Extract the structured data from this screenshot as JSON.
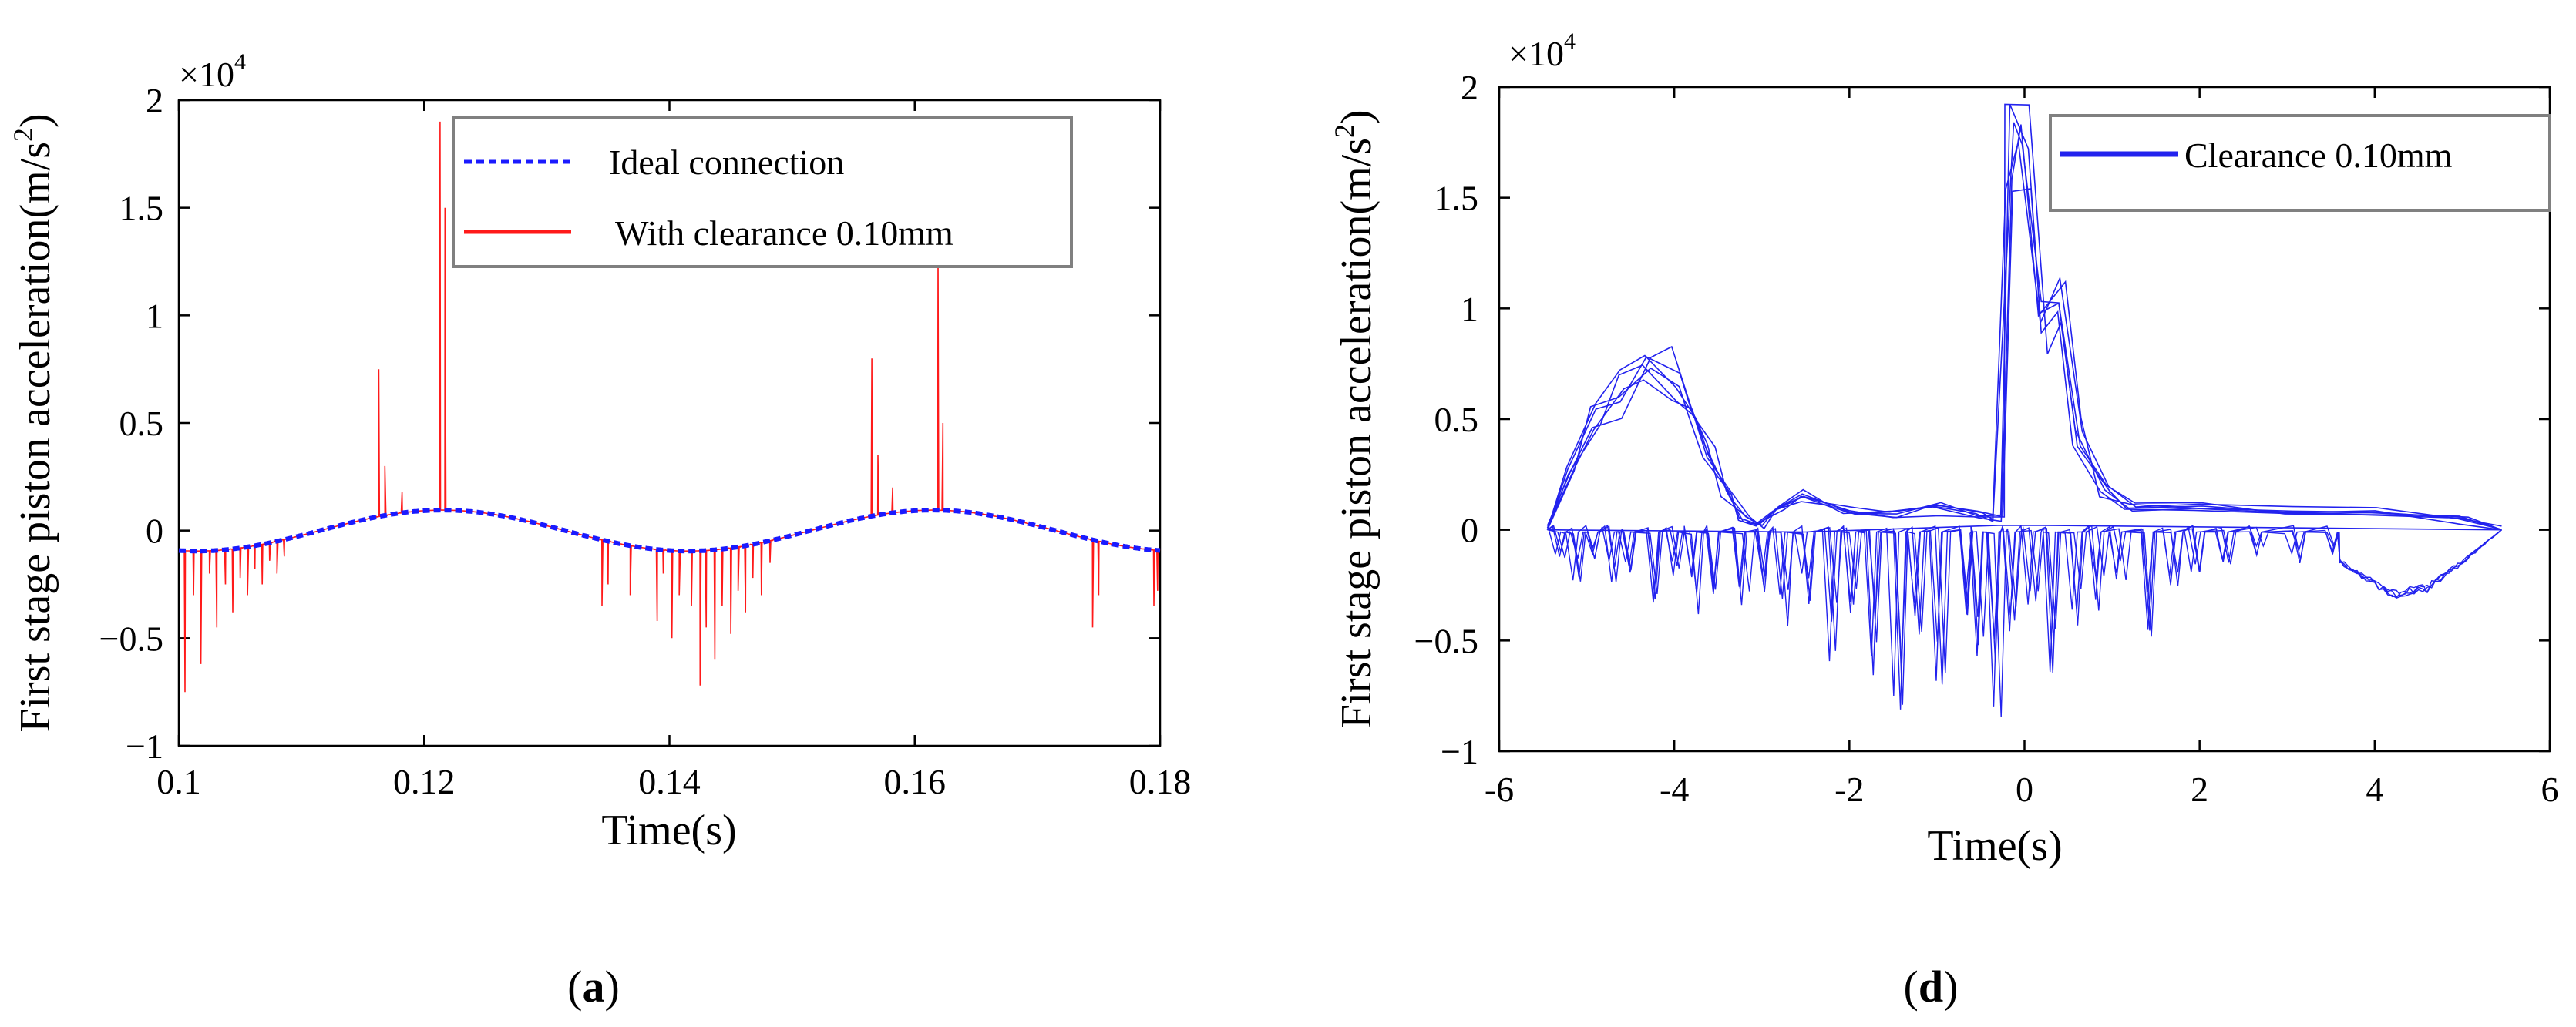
{
  "figure": {
    "panels": [
      "a",
      "d"
    ]
  },
  "chart_data": [
    {
      "id": "a",
      "type": "line",
      "panel_label": "a",
      "title": "",
      "xlabel": "Time(s)",
      "ylabel": "First stage piston acceleration(m/s²)",
      "ylabel_main": "First stage piston acceleration(m/s",
      "ylabel_sup": "2",
      "ylabel_close": ")",
      "y_multiplier": "×10",
      "y_multiplier_exp": "4",
      "xlim": [
        0.1,
        0.18
      ],
      "ylim": [
        -1,
        2
      ],
      "xticks": [
        0.1,
        0.12,
        0.14,
        0.16,
        0.18
      ],
      "xtick_labels": [
        "0.1",
        "0.12",
        "0.14",
        "0.16",
        "0.18"
      ],
      "yticks": [
        -1,
        -0.5,
        0,
        0.5,
        1,
        1.5,
        2
      ],
      "ytick_labels": [
        "−1",
        "−0.5",
        "0",
        "0.5",
        "1",
        "1.5",
        "2"
      ],
      "legend_position": "top-right",
      "series": [
        {
          "name": "Ideal connection",
          "style": "dashed",
          "color": "#1a1aff",
          "function": "sinusoid",
          "amplitude": 0.095,
          "period": 0.04,
          "peak_at": 0.1215
        },
        {
          "name": "With clearance 0.10mm",
          "style": "solid",
          "color": "#ff1a1a",
          "spikes": [
            [
              0.1005,
              -0.75
            ],
            [
              0.1012,
              -0.3
            ],
            [
              0.1018,
              -0.62
            ],
            [
              0.1025,
              -0.2
            ],
            [
              0.1031,
              -0.45
            ],
            [
              0.1038,
              -0.25
            ],
            [
              0.1044,
              -0.38
            ],
            [
              0.105,
              -0.22
            ],
            [
              0.1056,
              -0.3
            ],
            [
              0.1062,
              -0.18
            ],
            [
              0.1068,
              -0.25
            ],
            [
              0.1074,
              -0.14
            ],
            [
              0.108,
              -0.2
            ],
            [
              0.1086,
              -0.12
            ],
            [
              0.1163,
              0.75
            ],
            [
              0.1168,
              0.3
            ],
            [
              0.1182,
              0.18
            ],
            [
              0.1213,
              1.9
            ],
            [
              0.1217,
              1.5
            ],
            [
              0.1345,
              -0.35
            ],
            [
              0.135,
              -0.25
            ],
            [
              0.1368,
              -0.3
            ],
            [
              0.139,
              -0.42
            ],
            [
              0.1395,
              -0.2
            ],
            [
              0.1402,
              -0.5
            ],
            [
              0.1408,
              -0.3
            ],
            [
              0.1418,
              -0.35
            ],
            [
              0.1425,
              -0.72
            ],
            [
              0.143,
              -0.45
            ],
            [
              0.1437,
              -0.6
            ],
            [
              0.1443,
              -0.35
            ],
            [
              0.145,
              -0.48
            ],
            [
              0.1456,
              -0.28
            ],
            [
              0.1462,
              -0.38
            ],
            [
              0.1468,
              -0.22
            ],
            [
              0.1475,
              -0.3
            ],
            [
              0.1482,
              -0.15
            ],
            [
              0.1565,
              0.8
            ],
            [
              0.157,
              0.35
            ],
            [
              0.1582,
              0.2
            ],
            [
              0.1619,
              1.3
            ],
            [
              0.1623,
              0.5
            ],
            [
              0.1745,
              -0.45
            ],
            [
              0.175,
              -0.3
            ],
            [
              0.1795,
              -0.35
            ],
            [
              0.1798,
              -0.28
            ]
          ]
        }
      ]
    },
    {
      "id": "d",
      "type": "line",
      "panel_label": "d",
      "title": "",
      "xlabel": "Time(s)",
      "ylabel": "First stage piston acceleration(m/s²)",
      "ylabel_main": "First stage piston acceleration(m/s",
      "ylabel_sup": "2",
      "ylabel_close": ")",
      "y_multiplier": "×10",
      "y_multiplier_exp": "4",
      "xlim": [
        -6,
        6
      ],
      "ylim": [
        -1,
        2
      ],
      "xticks": [
        -6,
        -4,
        -2,
        0,
        2,
        4,
        6
      ],
      "xtick_labels": [
        "-6",
        "-4",
        "-2",
        "0",
        "2",
        "4",
        "6"
      ],
      "yticks": [
        -1,
        -0.5,
        0,
        0.5,
        1,
        1.5,
        2
      ],
      "ytick_labels": [
        "−1",
        "−0.5",
        "0",
        "0.5",
        "1",
        "1.5",
        "2"
      ],
      "legend_position": "top-right",
      "series": [
        {
          "name": "Clearance 0.10mm",
          "style": "solid",
          "color": "#2222ee",
          "upper_envelope": [
            [
              -5.45,
              0
            ],
            [
              -5.2,
              0.28
            ],
            [
              -4.9,
              0.55
            ],
            [
              -4.6,
              0.7
            ],
            [
              -4.3,
              0.78
            ],
            [
              -4.0,
              0.74
            ],
            [
              -3.8,
              0.62
            ],
            [
              -3.6,
              0.4
            ],
            [
              -3.4,
              0.18
            ],
            [
              -3.2,
              0.05
            ],
            [
              -3.0,
              0.02
            ],
            [
              -2.8,
              0.1
            ],
            [
              -2.5,
              0.18
            ],
            [
              -2.2,
              0.12
            ],
            [
              -2.0,
              0.1
            ],
            [
              -1.5,
              0.08
            ],
            [
              -1.0,
              0.1
            ],
            [
              -0.5,
              0.08
            ],
            [
              -0.3,
              0.05
            ],
            [
              -0.15,
              1.9
            ],
            [
              0.0,
              1.85
            ],
            [
              0.2,
              1.0
            ],
            [
              0.4,
              1.2
            ],
            [
              0.6,
              0.5
            ],
            [
              0.9,
              0.2
            ],
            [
              1.2,
              0.1
            ],
            [
              2.0,
              0.12
            ],
            [
              3.0,
              0.1
            ],
            [
              4.0,
              0.08
            ],
            [
              5.0,
              0.05
            ],
            [
              5.45,
              0
            ]
          ],
          "lower_envelope": [
            [
              -5.45,
              0
            ],
            [
              -4.5,
              -0.2
            ],
            [
              -3.5,
              -0.35
            ],
            [
              -2.5,
              -0.45
            ],
            [
              -1.5,
              -0.65
            ],
            [
              -1.2,
              -0.75
            ],
            [
              -0.6,
              -0.55
            ],
            [
              -0.3,
              -0.8
            ],
            [
              0.0,
              -0.45
            ],
            [
              0.4,
              -0.6
            ],
            [
              0.9,
              -0.3
            ],
            [
              1.5,
              -0.5
            ],
            [
              1.9,
              -0.3
            ],
            [
              2.5,
              -0.15
            ],
            [
              3.5,
              -0.12
            ],
            [
              3.8,
              -0.2
            ],
            [
              4.2,
              -0.3
            ],
            [
              4.6,
              -0.27
            ],
            [
              5.0,
              -0.15
            ],
            [
              5.45,
              0
            ]
          ],
          "dips": [
            [
              -5.3,
              -0.15
            ],
            [
              -5.1,
              -0.22
            ],
            [
              -4.95,
              -0.12
            ],
            [
              -4.7,
              -0.25
            ],
            [
              -4.5,
              -0.18
            ],
            [
              -4.25,
              -0.3
            ],
            [
              -4.0,
              -0.2
            ],
            [
              -3.75,
              -0.35
            ],
            [
              -3.5,
              -0.28
            ],
            [
              -3.2,
              -0.4
            ],
            [
              -3.0,
              -0.3
            ],
            [
              -2.75,
              -0.45
            ],
            [
              -2.5,
              -0.35
            ],
            [
              -2.2,
              -0.55
            ],
            [
              -1.95,
              -0.4
            ],
            [
              -1.7,
              -0.6
            ],
            [
              -1.45,
              -0.75
            ],
            [
              -1.2,
              -0.5
            ],
            [
              -0.95,
              -0.7
            ],
            [
              -0.7,
              -0.45
            ],
            [
              -0.5,
              -0.65
            ],
            [
              -0.3,
              -0.8
            ],
            [
              -0.15,
              -0.55
            ],
            [
              0.1,
              -0.5
            ],
            [
              0.35,
              -0.65
            ],
            [
              0.6,
              -0.4
            ],
            [
              0.85,
              -0.35
            ],
            [
              1.1,
              -0.25
            ],
            [
              1.4,
              -0.5
            ],
            [
              1.7,
              -0.3
            ],
            [
              1.95,
              -0.2
            ],
            [
              2.3,
              -0.15
            ],
            [
              2.7,
              -0.12
            ],
            [
              3.1,
              -0.15
            ],
            [
              3.5,
              -0.1
            ]
          ]
        }
      ]
    }
  ]
}
